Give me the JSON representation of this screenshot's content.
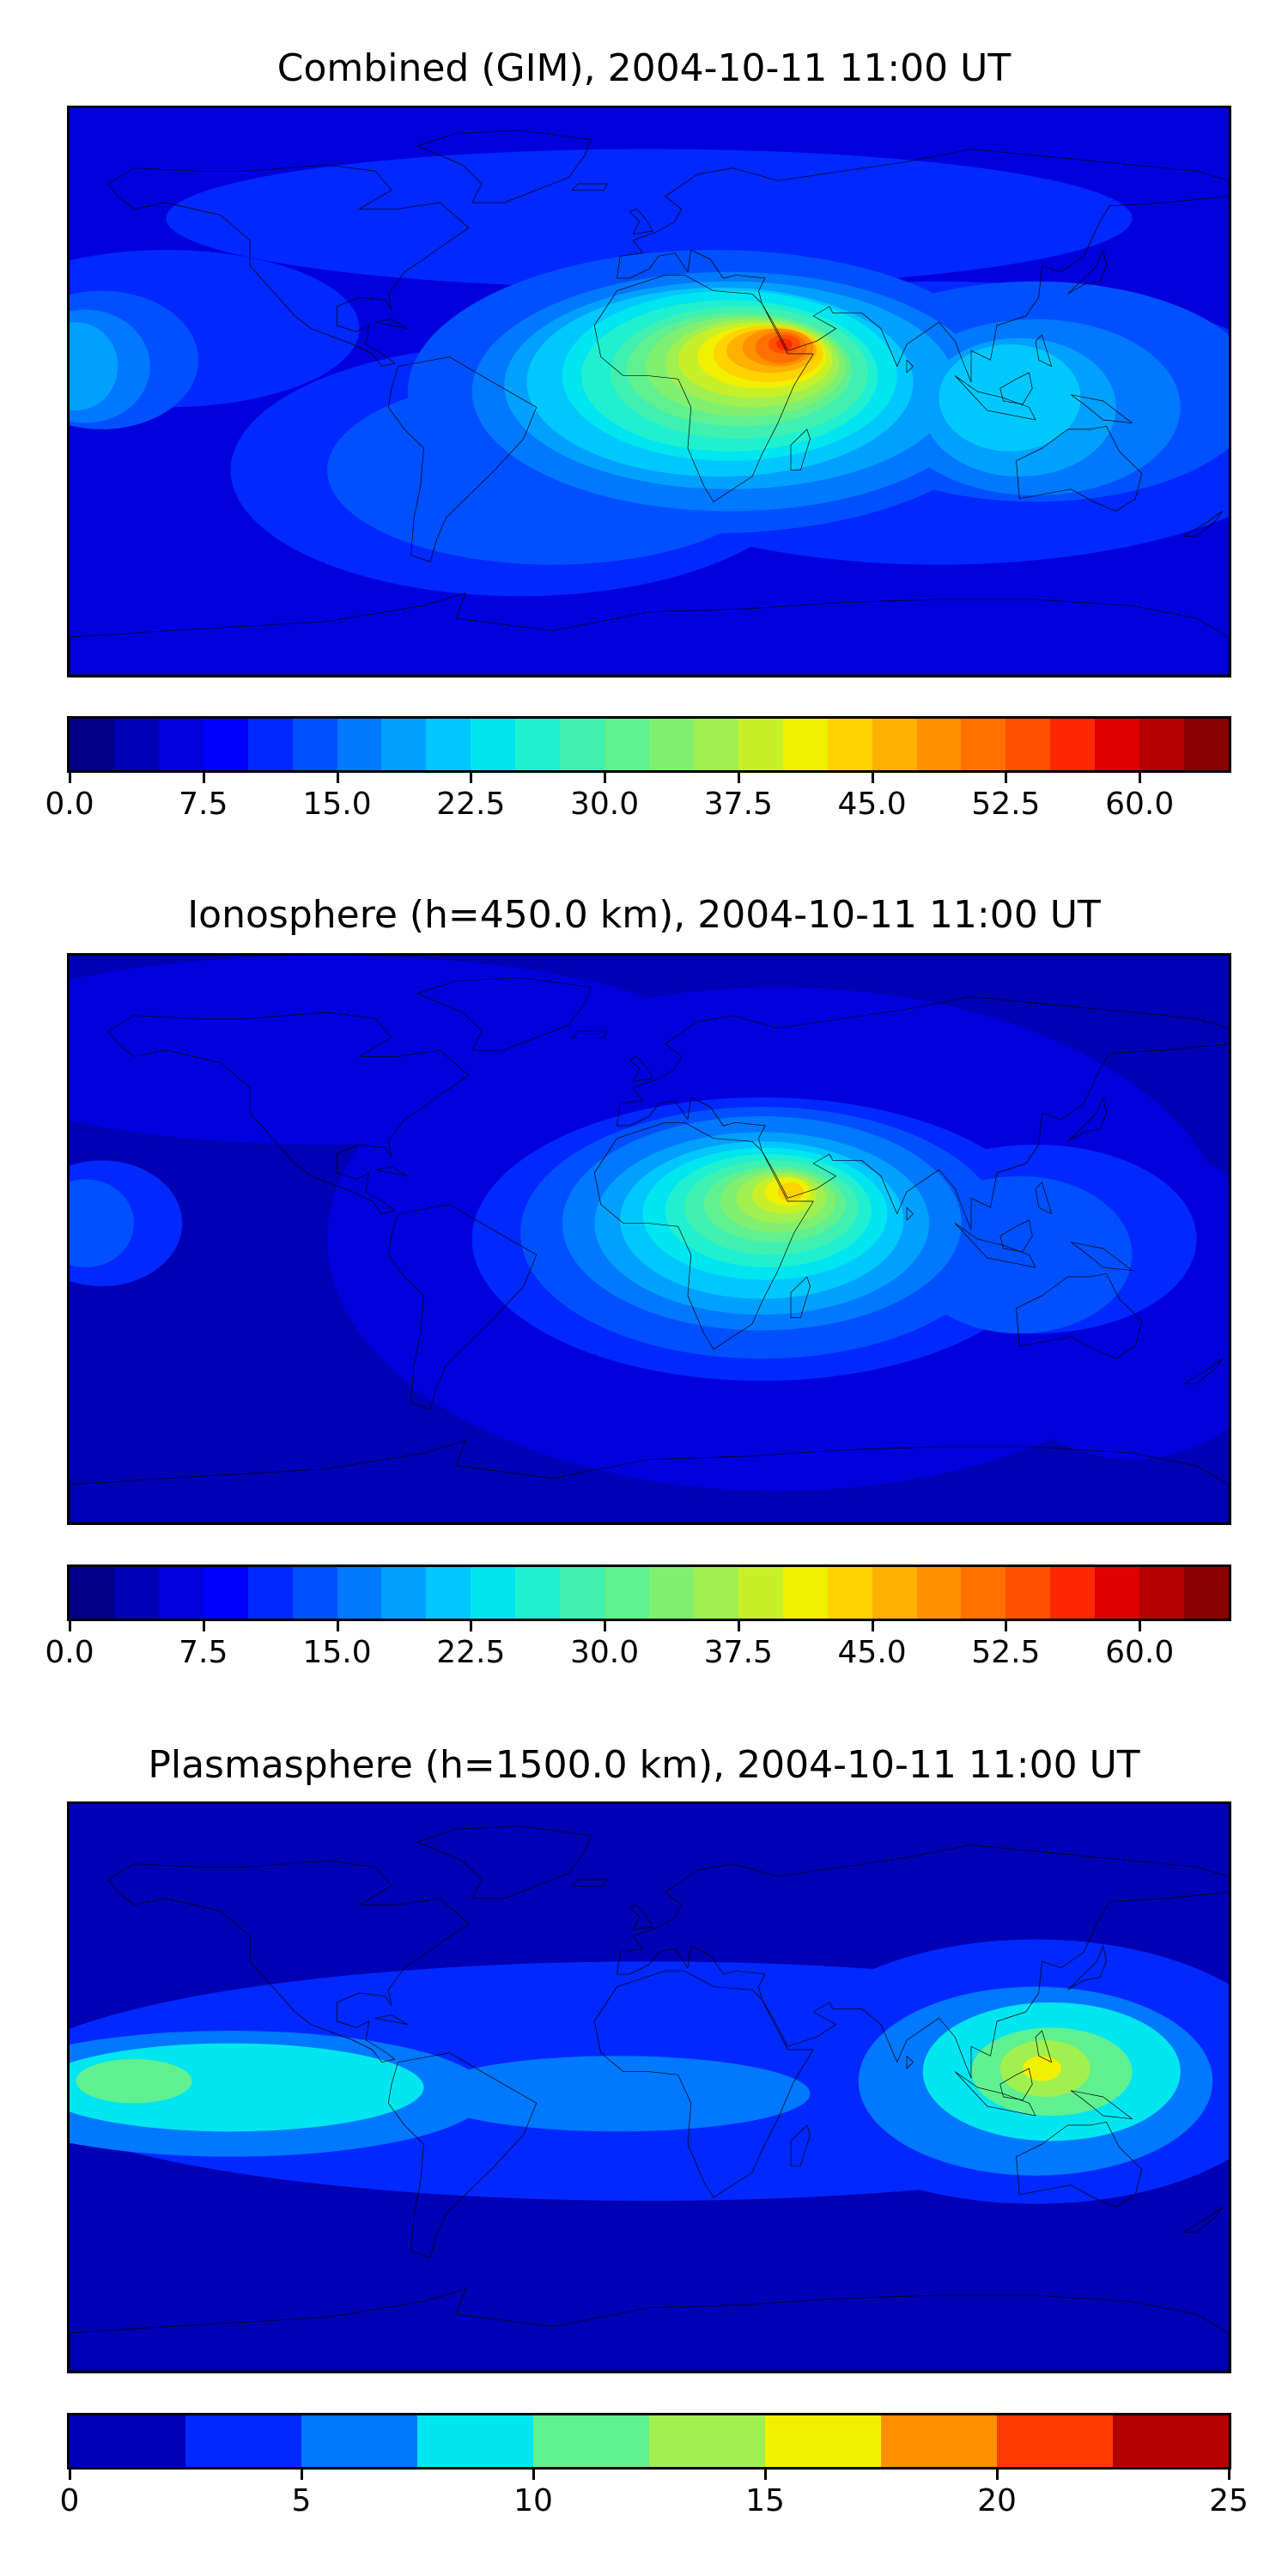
{
  "panels": [
    {
      "title": "Combined (GIM), 2004-10-11 11:00 UT",
      "colorbar": {
        "ticks": [
          "0.0",
          "7.5",
          "15.0",
          "22.5",
          "30.0",
          "37.5",
          "45.0",
          "52.5",
          "60.0"
        ],
        "vmin": 0,
        "vmax": 65,
        "tick_start": 0,
        "tick_step": 7.5,
        "colors": [
          "#00008b",
          "#0000b4",
          "#0000dc",
          "#0000ff",
          "#0028ff",
          "#0050ff",
          "#0078ff",
          "#00a0ff",
          "#00c8ff",
          "#00e6f0",
          "#20f0d0",
          "#40f0b0",
          "#60f090",
          "#80f070",
          "#a0f050",
          "#c8f028",
          "#f0f000",
          "#ffd200",
          "#ffb000",
          "#ff9000",
          "#ff7000",
          "#ff5000",
          "#ff2800",
          "#e00000",
          "#b40000",
          "#8b0000"
        ]
      },
      "field": {
        "background": "#0000dc",
        "layers": [
          {
            "color": "#0028ff",
            "blobs": [
              [
                -40,
                -25,
                90,
                40
              ],
              [
                90,
                -10,
                120,
                45
              ],
              [
                0,
                55,
                150,
                22
              ],
              [
                -150,
                20,
                60,
                25
              ]
            ]
          },
          {
            "color": "#0050ff",
            "blobs": [
              [
                20,
                0,
                95,
                45
              ],
              [
                120,
                0,
                70,
                35
              ],
              [
                -170,
                10,
                30,
                22
              ],
              [
                -30,
                -25,
                70,
                30
              ]
            ]
          },
          {
            "color": "#0078ff",
            "blobs": [
              [
                25,
                0,
                80,
                38
              ],
              [
                120,
                -5,
                45,
                28
              ],
              [
                -175,
                8,
                20,
                18
              ]
            ]
          },
          {
            "color": "#00a0ff",
            "blobs": [
              [
                25,
                2,
                70,
                33
              ],
              [
                115,
                -5,
                30,
                22
              ],
              [
                -178,
                8,
                13,
                14
              ]
            ]
          },
          {
            "color": "#00c8ff",
            "blobs": [
              [
                22,
                3,
                60,
                30
              ],
              [
                112,
                -2,
                22,
                17
              ]
            ]
          },
          {
            "color": "#00e6f0",
            "blobs": [
              [
                25,
                5,
                52,
                27
              ]
            ]
          },
          {
            "color": "#20f0d0",
            "blobs": [
              [
                25,
                5,
                46,
                24
              ]
            ]
          },
          {
            "color": "#40f0b0",
            "blobs": [
              [
                28,
                6,
                40,
                21
              ]
            ]
          },
          {
            "color": "#60f090",
            "blobs": [
              [
                28,
                7,
                35,
                18
              ]
            ]
          },
          {
            "color": "#80f070",
            "blobs": [
              [
                30,
                8,
                31,
                16
              ]
            ]
          },
          {
            "color": "#a0f050",
            "blobs": [
              [
                32,
                9,
                27,
                14
              ]
            ]
          },
          {
            "color": "#c8f028",
            "blobs": [
              [
                33,
                10,
                24,
                12
              ]
            ]
          },
          {
            "color": "#f0f000",
            "blobs": [
              [
                35,
                11,
                20,
                10
              ]
            ]
          },
          {
            "color": "#ffd200",
            "blobs": [
              [
                37,
                12,
                17,
                9
              ]
            ]
          },
          {
            "color": "#ffb000",
            "blobs": [
              [
                38,
                13,
                14,
                7
              ]
            ]
          },
          {
            "color": "#ff9000",
            "blobs": [
              [
                40,
                14,
                11,
                6
              ]
            ]
          },
          {
            "color": "#ff7000",
            "blobs": [
              [
                41,
                14,
                8,
                5
              ]
            ]
          },
          {
            "color": "#ff5000",
            "blobs": [
              [
                42,
                15,
                5,
                3
              ]
            ]
          },
          {
            "color": "#ff2800",
            "blobs": [
              [
                42,
                15,
                2.5,
                1.8
              ]
            ]
          }
        ]
      }
    },
    {
      "title": "Ionosphere  (h=450.0 km), 2004-10-11 11:00 UT",
      "colorbar": {
        "ticks": [
          "0.0",
          "7.5",
          "15.0",
          "22.5",
          "30.0",
          "37.5",
          "45.0",
          "52.5",
          "60.0"
        ],
        "vmin": 0,
        "vmax": 65,
        "tick_start": 0,
        "tick_step": 7.5,
        "colors": [
          "#00008b",
          "#0000b4",
          "#0000dc",
          "#0000ff",
          "#0028ff",
          "#0050ff",
          "#0078ff",
          "#00a0ff",
          "#00c8ff",
          "#00e6f0",
          "#20f0d0",
          "#40f0b0",
          "#60f090",
          "#80f070",
          "#a0f050",
          "#c8f028",
          "#f0f000",
          "#ffd200",
          "#ffb000",
          "#ff9000",
          "#ff7000",
          "#ff5000",
          "#ff2800",
          "#e00000",
          "#b40000",
          "#8b0000"
        ]
      },
      "field": {
        "background": "#0000b4",
        "layers": [
          {
            "color": "#0000dc",
            "blobs": [
              [
                40,
                0,
                140,
                80
              ],
              [
                -100,
                60,
                120,
                30
              ],
              [
                150,
                -20,
                50,
                50
              ]
            ]
          },
          {
            "color": "#0028ff",
            "blobs": [
              [
                35,
                0,
                90,
                45
              ],
              [
                120,
                0,
                50,
                30
              ],
              [
                -170,
                5,
                25,
                20
              ]
            ]
          },
          {
            "color": "#0050ff",
            "blobs": [
              [
                35,
                2,
                75,
                40
              ],
              [
                115,
                -5,
                35,
                25
              ],
              [
                -175,
                5,
                15,
                14
              ]
            ]
          },
          {
            "color": "#0078ff",
            "blobs": [
              [
                35,
                5,
                62,
                34
              ]
            ]
          },
          {
            "color": "#00a0ff",
            "blobs": [
              [
                35,
                5,
                52,
                29
              ]
            ]
          },
          {
            "color": "#00c8ff",
            "blobs": [
              [
                35,
                6,
                44,
                25
              ]
            ]
          },
          {
            "color": "#00e6f0",
            "blobs": [
              [
                36,
                8,
                38,
                21
              ]
            ]
          },
          {
            "color": "#20f0d0",
            "blobs": [
              [
                37,
                9,
                32,
                18
              ]
            ]
          },
          {
            "color": "#40f0b0",
            "blobs": [
              [
                38,
                10,
                27,
                15
              ]
            ]
          },
          {
            "color": "#60f090",
            "blobs": [
              [
                39,
                11,
                22,
                12
              ]
            ]
          },
          {
            "color": "#80f070",
            "blobs": [
              [
                40,
                12,
                18,
                10
              ]
            ]
          },
          {
            "color": "#a0f050",
            "blobs": [
              [
                41,
                13,
                14,
                8
              ]
            ]
          },
          {
            "color": "#c8f028",
            "blobs": [
              [
                42,
                14,
                10,
                6
              ]
            ]
          },
          {
            "color": "#f0f000",
            "blobs": [
              [
                43,
                15,
                7,
                4.5
              ]
            ]
          },
          {
            "color": "#ffd200",
            "blobs": [
              [
                44,
                15,
                4,
                3
              ]
            ]
          }
        ]
      }
    },
    {
      "title": "Plasmasphere (h=1500.0 km), 2004-10-11 11:00 UT",
      "colorbar": {
        "ticks": [
          "0",
          "5",
          "10",
          "15",
          "20",
          "25"
        ],
        "vmin": 0,
        "vmax": 25,
        "tick_start": 0,
        "tick_step": 5,
        "colors": [
          "#0000b4",
          "#0028ff",
          "#0078ff",
          "#00e6f0",
          "#60f090",
          "#a0f050",
          "#f0f000",
          "#ff9000",
          "#ff3a00",
          "#b40000"
        ]
      },
      "field": {
        "background": "#0000b4",
        "layers": [
          {
            "color": "#0028ff",
            "blobs": [
              [
                0,
                2,
                200,
                38
              ],
              [
                120,
                5,
                80,
                42
              ]
            ]
          },
          {
            "color": "#0078ff",
            "blobs": [
              [
                -130,
                -2,
                80,
                20
              ],
              [
                120,
                2,
                55,
                30
              ],
              [
                -10,
                -2,
                60,
                12
              ]
            ]
          },
          {
            "color": "#00e6f0",
            "blobs": [
              [
                -130,
                0,
                60,
                14
              ],
              [
                125,
                5,
                40,
                22
              ]
            ]
          },
          {
            "color": "#60f090",
            "blobs": [
              [
                -160,
                2,
                18,
                7
              ],
              [
                125,
                5,
                25,
                14
              ]
            ]
          },
          {
            "color": "#a0f050",
            "blobs": [
              [
                123,
                6,
                14,
                9
              ]
            ]
          },
          {
            "color": "#f0f000",
            "blobs": [
              [
                122,
                6,
                6,
                4
              ]
            ]
          }
        ]
      }
    }
  ]
}
